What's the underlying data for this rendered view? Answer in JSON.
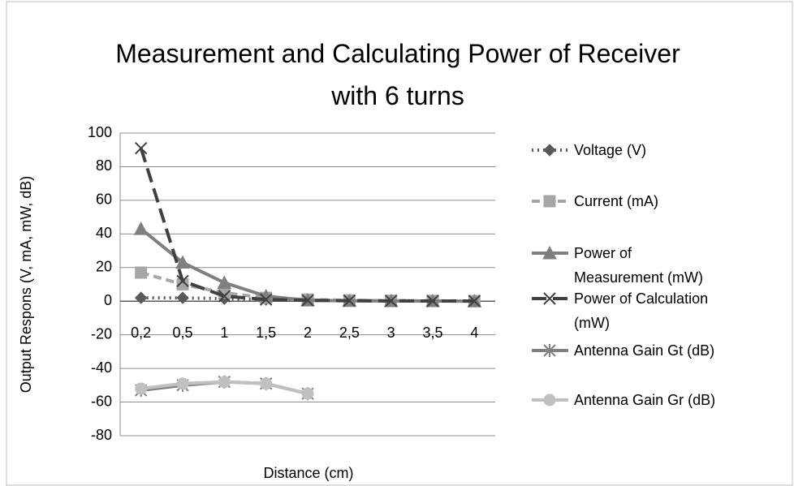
{
  "chart_data": {
    "type": "line",
    "title": "Measurement  and Calculating Power of Receiver  with 6 turns",
    "x_label": "Distance (cm)",
    "y_label": "Output Respons (V, mA,  mW, dB)",
    "categories": [
      "0,2",
      "0,5",
      "1",
      "1,5",
      "2",
      "2,5",
      "3",
      "3,5",
      "4"
    ],
    "ylim": [
      -80,
      100
    ],
    "yticks": [
      -80,
      -60,
      -40,
      -20,
      0,
      20,
      40,
      60,
      80,
      100
    ],
    "grid": true,
    "legend": "right",
    "series": [
      {
        "name": "Voltage (V)",
        "color": "#595959",
        "dash": "dotted",
        "marker": "diamond",
        "values": [
          2,
          2,
          1.5,
          1,
          0.5,
          0.3,
          0.2,
          0.1,
          0.1
        ]
      },
      {
        "name": "Current (mA)",
        "color": "#a6a6a6",
        "dash": "dashed",
        "marker": "square",
        "values": [
          17,
          10,
          5,
          2,
          1,
          0.5,
          0.3,
          0.2,
          0.1
        ]
      },
      {
        "name": "Power of Measurement (mW)",
        "color": "#7f7f7f",
        "dash": "solid",
        "marker": "triangle",
        "values": [
          43,
          23,
          11,
          3,
          0.5,
          0.2,
          0.1,
          0.1,
          0
        ]
      },
      {
        "name": "Power of Calculation (mW)",
        "color": "#404040",
        "dash": "longdash",
        "marker": "x",
        "values": [
          91,
          12,
          3,
          1,
          0.5,
          0.3,
          0.2,
          0.1,
          0.1
        ]
      },
      {
        "name": "Antenna Gain Gt (dB)",
        "color": "#808080",
        "dash": "solid",
        "marker": "star",
        "values": [
          -53,
          -50,
          -48,
          -49,
          -55,
          null,
          null,
          null,
          null
        ]
      },
      {
        "name": "Antenna Gain Gr (dB)",
        "color": "#c0c0c0",
        "dash": "solid",
        "marker": "circle",
        "values": [
          -52,
          -49,
          -48,
          -49,
          -55,
          null,
          null,
          null,
          null
        ]
      }
    ]
  }
}
